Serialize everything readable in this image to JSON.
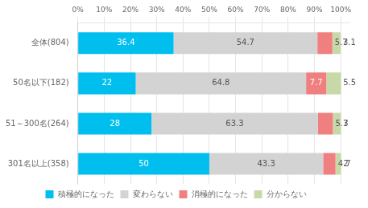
{
  "chart_data": {
    "type": "bar",
    "orientation": "horizontal",
    "stacked": true,
    "categories": [
      "全体(804)",
      "50名以下(182)",
      "51～300名(264)",
      "301名以上(358)"
    ],
    "series": [
      {
        "name": "積極的になった",
        "color": "#00BFEE",
        "values": [
          36.4,
          22.0,
          28.0,
          50.0
        ]
      },
      {
        "name": "変わらない",
        "color": "#D3D3D3",
        "values": [
          54.7,
          64.8,
          63.3,
          43.3
        ]
      },
      {
        "name": "消極的になった",
        "color": "#F08080",
        "values": [
          5.7,
          7.7,
          5.7,
          4.7
        ]
      },
      {
        "name": "分からない",
        "color": "#C8D9A8",
        "values": [
          3.1,
          5.5,
          3.0,
          2.0
        ]
      }
    ],
    "xlim": [
      0,
      103
    ],
    "xticks": [
      {
        "value": 0,
        "label": "0%"
      },
      {
        "value": 10,
        "label": "10%"
      },
      {
        "value": 20,
        "label": "20%"
      },
      {
        "value": 30,
        "label": "30%"
      },
      {
        "value": 40,
        "label": "40%"
      },
      {
        "value": 50,
        "label": "50%"
      },
      {
        "value": 60,
        "label": "60%"
      },
      {
        "value": 70,
        "label": "70%"
      },
      {
        "value": 80,
        "label": "80%"
      },
      {
        "value": 90,
        "label": "90%"
      },
      {
        "value": 100,
        "label": "100%"
      }
    ],
    "grid": true,
    "legend": "bottom",
    "data_labels": true
  }
}
